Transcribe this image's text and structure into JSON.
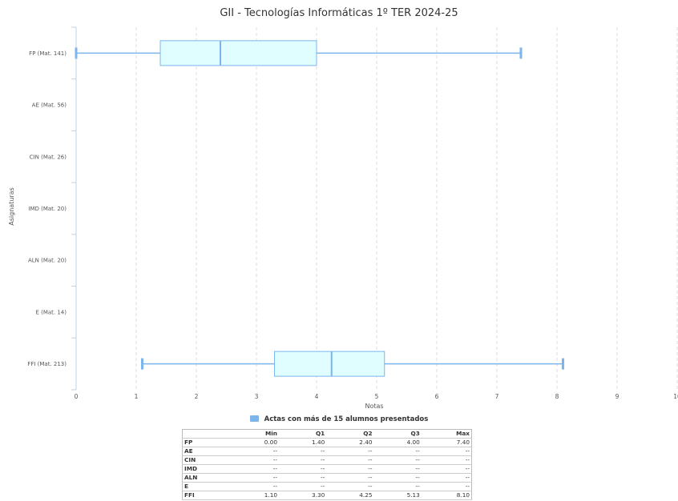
{
  "chart_data": {
    "type": "boxplot",
    "title": "GII - Tecnologías Informáticas 1º TER 2024-25",
    "xlabel": "Notas",
    "ylabel": "Asignaturas",
    "xlim": [
      0,
      10
    ],
    "xticks": [
      "0",
      "1",
      "2",
      "3",
      "4",
      "5",
      "6",
      "7",
      "8",
      "9",
      "10"
    ],
    "categories": [
      "FP (Mat. 141)",
      "AE (Mat. 56)",
      "CIN (Mat. 26)",
      "IMD (Mat. 20)",
      "ALN (Mat. 20)",
      "E (Mat. 14)",
      "FFI (Mat. 213)"
    ],
    "boxes": [
      {
        "min": 0.0,
        "q1": 1.4,
        "median": 2.4,
        "q3": 4.0,
        "max": 7.4
      },
      null,
      null,
      null,
      null,
      null,
      {
        "min": 1.1,
        "q1": 3.3,
        "median": 4.25,
        "q3": 5.13,
        "max": 8.1
      }
    ],
    "legend": "Actas con más de 15 alumnos presentados",
    "legend_position": "bottom",
    "grid": "vertical dashed",
    "colors": {
      "box_fill": "#e0feff",
      "box_stroke": "#7cb5ec",
      "legend": "#7cb5ec"
    }
  },
  "table": {
    "headers": [
      "",
      "Min",
      "Q1",
      "Q2",
      "Q3",
      "Max"
    ],
    "rows": [
      [
        "FP",
        "0.00",
        "1.40",
        "2.40",
        "4.00",
        "7.40"
      ],
      [
        "AE",
        "--",
        "--",
        "--",
        "--",
        "--"
      ],
      [
        "CIN",
        "--",
        "--",
        "--",
        "--",
        "--"
      ],
      [
        "IMD",
        "--",
        "--",
        "--",
        "--",
        "--"
      ],
      [
        "ALN",
        "--",
        "--",
        "--",
        "--",
        "--"
      ],
      [
        "E",
        "--",
        "--",
        "--",
        "--",
        "--"
      ],
      [
        "FFI",
        "1.10",
        "3.30",
        "4.25",
        "5.13",
        "8.10"
      ]
    ]
  }
}
